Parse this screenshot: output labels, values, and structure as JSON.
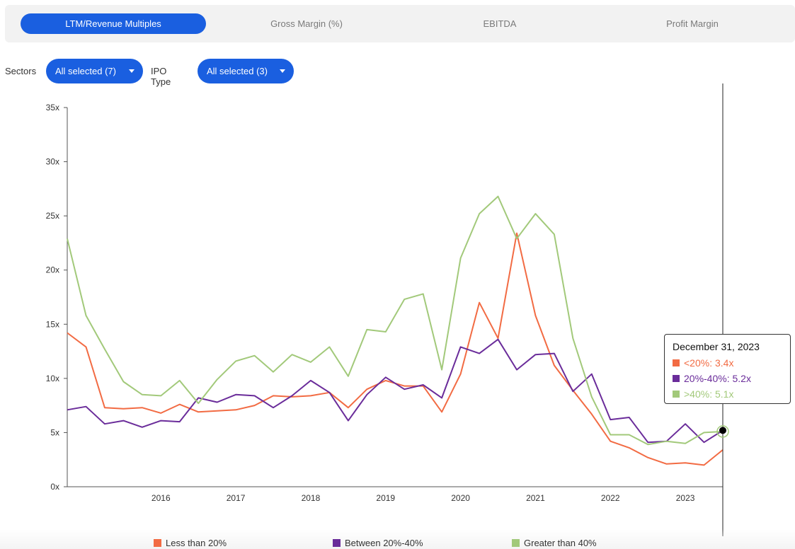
{
  "tabs": [
    {
      "label": "LTM/Revenue Multiples",
      "active": true
    },
    {
      "label": "Gross Margin (%)",
      "active": false
    },
    {
      "label": "EBITDA",
      "active": false
    },
    {
      "label": "Profit Margin",
      "active": false
    }
  ],
  "filters": {
    "sectors_label": "Sectors",
    "sectors_value": "All selected (7)",
    "ipo_label": "IPO Type",
    "ipo_value": "All selected (3)"
  },
  "tooltip": {
    "date": "December 31, 2023",
    "rows": [
      {
        "text": "<20%: 3.4x",
        "color": "#f26b43"
      },
      {
        "text": "20%-40%: 5.2x",
        "color": "#6a2c9a"
      },
      {
        "text": ">40%: 5.1x",
        "color": "#a2c97a"
      }
    ]
  },
  "legend": [
    {
      "label": "Less than 20%",
      "color": "#f26b43"
    },
    {
      "label": "Between 20%-40%",
      "color": "#6a2c9a"
    },
    {
      "label": "Greater than 40%",
      "color": "#a2c97a"
    }
  ],
  "chart_data": {
    "type": "line",
    "ytick_labels": [
      "0x",
      "5x",
      "10x",
      "15x",
      "20x",
      "25x",
      "30x",
      "35x"
    ],
    "ylim": [
      0,
      35
    ],
    "xtick_labels": [
      "2016",
      "2017",
      "2018",
      "2019",
      "2020",
      "2021",
      "2022",
      "2023"
    ],
    "xlim": [
      2015.25,
      2024.0
    ],
    "grid": false,
    "legend_position": "bottom",
    "x": [
      2015.25,
      2015.5,
      2015.75,
      2016.0,
      2016.25,
      2016.5,
      2016.75,
      2017.0,
      2017.25,
      2017.5,
      2017.75,
      2018.0,
      2018.25,
      2018.5,
      2018.75,
      2019.0,
      2019.25,
      2019.5,
      2019.75,
      2020.0,
      2020.25,
      2020.5,
      2020.75,
      2021.0,
      2021.25,
      2021.5,
      2021.75,
      2022.0,
      2022.25,
      2022.5,
      2022.75,
      2023.0,
      2023.25,
      2023.5,
      2023.75,
      2024.0
    ],
    "series": [
      {
        "name": "Less than 20%",
        "color": "#f26b43",
        "values": [
          14.2,
          12.9,
          7.3,
          7.2,
          7.3,
          6.8,
          7.6,
          6.9,
          7.0,
          7.1,
          7.5,
          8.4,
          8.3,
          8.4,
          8.7,
          7.3,
          9.0,
          9.8,
          9.3,
          9.3,
          6.9,
          10.4,
          17.0,
          13.7,
          23.4,
          15.8,
          11.2,
          8.9,
          6.7,
          4.2,
          3.6,
          2.7,
          2.1,
          2.2,
          2.0,
          3.4
        ]
      },
      {
        "name": "Between 20%-40%",
        "color": "#6a2c9a",
        "values": [
          7.1,
          7.4,
          5.8,
          6.1,
          5.5,
          6.1,
          6.0,
          8.2,
          7.8,
          8.5,
          8.4,
          7.3,
          8.4,
          9.8,
          8.7,
          6.1,
          8.5,
          10.1,
          9.0,
          9.4,
          8.2,
          12.9,
          12.3,
          13.6,
          10.8,
          12.2,
          12.3,
          8.8,
          10.4,
          6.2,
          6.4,
          4.1,
          4.2,
          5.8,
          4.1,
          5.2
        ]
      },
      {
        "name": "Greater than 40%",
        "color": "#a2c97a",
        "values": [
          22.9,
          15.8,
          12.7,
          9.7,
          8.5,
          8.4,
          9.8,
          7.7,
          9.9,
          11.6,
          12.1,
          10.6,
          12.2,
          11.5,
          12.9,
          10.2,
          14.5,
          14.3,
          17.3,
          17.8,
          10.8,
          21.1,
          25.2,
          26.8,
          22.9,
          25.2,
          23.3,
          13.7,
          8.3,
          4.8,
          4.8,
          3.9,
          4.2,
          4.0,
          5.0,
          5.1
        ]
      }
    ]
  }
}
